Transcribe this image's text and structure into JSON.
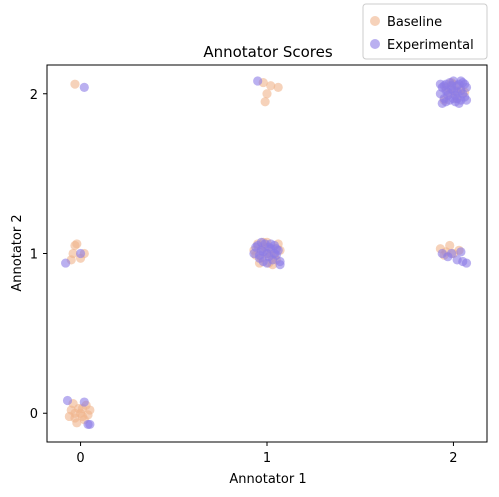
{
  "chart_data": {
    "type": "scatter",
    "title": "Annotator Scores",
    "xlabel": "Annotator 1",
    "ylabel": "Annotator 2",
    "xlim": [
      -0.18,
      2.18
    ],
    "ylim": [
      -0.18,
      2.18
    ],
    "xticks": [
      0,
      1,
      2
    ],
    "yticks": [
      0,
      1,
      2
    ],
    "grid": false,
    "legend_position": "above-top-right",
    "jitter": "points are randomly jittered around integer scores",
    "series": [
      {
        "name": "Baseline",
        "color": "#f0b48c",
        "points": [
          [
            -0.05,
            0.02
          ],
          [
            -0.03,
            -0.03
          ],
          [
            -0.01,
            0.03
          ],
          [
            0.0,
            0.0
          ],
          [
            0.01,
            -0.02
          ],
          [
            -0.04,
            0.06
          ],
          [
            0.03,
            0.05
          ],
          [
            0.04,
            -0.01
          ],
          [
            -0.02,
            -0.06
          ],
          [
            0.02,
            -0.04
          ],
          [
            0.05,
            0.02
          ],
          [
            -0.06,
            -0.02
          ],
          [
            0.01,
            0.03
          ],
          [
            -0.03,
            0.0
          ],
          [
            -0.02,
            1.06
          ],
          [
            -0.04,
            1.0
          ],
          [
            0.0,
            0.97
          ],
          [
            -0.05,
            0.96
          ],
          [
            0.02,
            1.0
          ],
          [
            -0.03,
            1.05
          ],
          [
            -0.03,
            2.06
          ],
          [
            0.98,
            2.07
          ],
          [
            1.0,
            2.0
          ],
          [
            1.02,
            2.05
          ],
          [
            1.06,
            2.04
          ],
          [
            0.99,
            1.95
          ],
          [
            0.93,
            1.02
          ],
          [
            0.95,
            1.06
          ],
          [
            0.97,
            0.97
          ],
          [
            0.98,
            1.07
          ],
          [
            1.0,
            1.0
          ],
          [
            1.01,
            0.94
          ],
          [
            1.03,
            1.03
          ],
          [
            1.04,
            0.98
          ],
          [
            1.06,
            1.06
          ],
          [
            0.96,
            0.94
          ],
          [
            0.99,
            1.04
          ],
          [
            1.02,
            0.99
          ],
          [
            1.05,
            0.96
          ],
          [
            0.94,
            0.99
          ],
          [
            1.07,
            1.02
          ],
          [
            1.0,
            1.07
          ],
          [
            0.97,
            1.03
          ],
          [
            1.03,
            0.93
          ],
          [
            1.96,
            2.04
          ],
          [
            1.98,
            2.0
          ],
          [
            2.0,
            2.06
          ],
          [
            2.02,
            1.97
          ],
          [
            2.04,
            2.03
          ],
          [
            1.95,
            1.96
          ],
          [
            2.06,
            2.01
          ],
          [
            1.99,
            2.07
          ],
          [
            2.01,
            2.02
          ],
          [
            1.93,
            1.03
          ],
          [
            1.96,
            1.01
          ],
          [
            1.98,
            1.05
          ],
          [
            2.0,
            1.0
          ],
          [
            2.03,
            1.02
          ],
          [
            1.95,
            0.99
          ]
        ]
      },
      {
        "name": "Experimental",
        "color": "#8c7ce6",
        "points": [
          [
            -0.07,
            0.08
          ],
          [
            0.02,
            0.07
          ],
          [
            0.04,
            -0.07
          ],
          [
            0.05,
            -0.07
          ],
          [
            -0.08,
            0.94
          ],
          [
            0.0,
            1.0
          ],
          [
            0.02,
            2.04
          ],
          [
            0.95,
            2.08
          ],
          [
            0.93,
            1.0
          ],
          [
            0.95,
            1.05
          ],
          [
            0.96,
            0.97
          ],
          [
            0.97,
            1.02
          ],
          [
            0.98,
            0.95
          ],
          [
            0.99,
            1.06
          ],
          [
            1.0,
            1.0
          ],
          [
            1.01,
            0.98
          ],
          [
            1.02,
            1.03
          ],
          [
            1.03,
            0.96
          ],
          [
            1.04,
            1.05
          ],
          [
            1.05,
            0.99
          ],
          [
            1.06,
            1.02
          ],
          [
            1.07,
            0.95
          ],
          [
            0.94,
            1.04
          ],
          [
            0.97,
            1.07
          ],
          [
            1.0,
            0.94
          ],
          [
            1.02,
            1.06
          ],
          [
            1.04,
            1.0
          ],
          [
            1.07,
            0.93
          ],
          [
            0.98,
            1.01
          ],
          [
            1.01,
            1.04
          ],
          [
            0.96,
            0.99
          ],
          [
            1.05,
            1.03
          ],
          [
            1.93,
            2.0
          ],
          [
            1.94,
            2.04
          ],
          [
            1.95,
            1.97
          ],
          [
            1.96,
            2.06
          ],
          [
            1.97,
            2.01
          ],
          [
            1.98,
            1.96
          ],
          [
            1.99,
            2.03
          ],
          [
            2.0,
            2.08
          ],
          [
            2.01,
            1.99
          ],
          [
            2.02,
            2.05
          ],
          [
            2.03,
            1.94
          ],
          [
            2.04,
            2.02
          ],
          [
            2.05,
            2.07
          ],
          [
            2.06,
            1.98
          ],
          [
            2.07,
            2.04
          ],
          [
            1.94,
            1.94
          ],
          [
            1.96,
            2.02
          ],
          [
            1.98,
            2.07
          ],
          [
            2.0,
            1.97
          ],
          [
            2.02,
            2.01
          ],
          [
            2.04,
            1.96
          ],
          [
            2.06,
            2.06
          ],
          [
            1.95,
            2.05
          ],
          [
            1.97,
            1.99
          ],
          [
            1.99,
            2.05
          ],
          [
            2.01,
            1.95
          ],
          [
            2.03,
            2.06
          ],
          [
            2.05,
            2.0
          ],
          [
            2.07,
            1.96
          ],
          [
            1.93,
            2.06
          ],
          [
            2.0,
            2.02
          ],
          [
            2.02,
            1.97
          ],
          [
            1.96,
            1.95
          ],
          [
            2.04,
            2.08
          ],
          [
            1.94,
            1.0
          ],
          [
            1.97,
            0.98
          ],
          [
            1.99,
            1.0
          ],
          [
            2.02,
            0.96
          ],
          [
            2.04,
            1.01
          ],
          [
            2.05,
            0.95
          ],
          [
            2.07,
            0.94
          ]
        ]
      }
    ]
  }
}
